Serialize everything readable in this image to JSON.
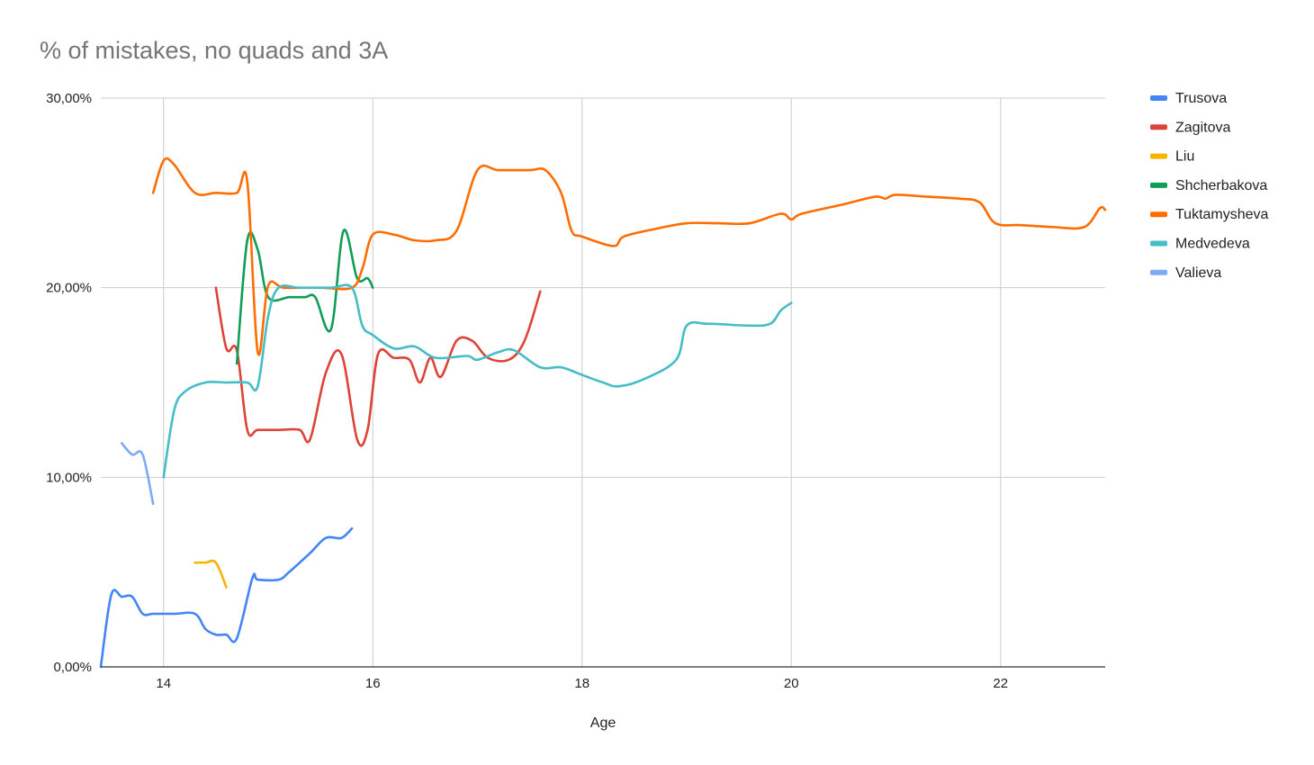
{
  "chart_data": {
    "type": "line",
    "title": "% of mistakes, no quads and 3A",
    "xlabel": "Age",
    "ylabel": "",
    "xlim": [
      13.4,
      23.0
    ],
    "ylim": [
      0,
      0.3
    ],
    "x_ticks": [
      14,
      16,
      18,
      20,
      22
    ],
    "x_tick_labels": [
      "14",
      "16",
      "18",
      "20",
      "22"
    ],
    "y_ticks": [
      0,
      0.1,
      0.2,
      0.3
    ],
    "y_tick_labels": [
      "0,00%",
      "10,00%",
      "20,00%",
      "30,00%"
    ],
    "grid": true,
    "legend_position": "right",
    "series": [
      {
        "name": "Trusova",
        "color": "#4285f4",
        "points": [
          [
            13.4,
            0.0
          ],
          [
            13.5,
            0.038
          ],
          [
            13.6,
            0.037
          ],
          [
            13.7,
            0.037
          ],
          [
            13.8,
            0.028
          ],
          [
            13.9,
            0.028
          ],
          [
            14.1,
            0.028
          ],
          [
            14.3,
            0.028
          ],
          [
            14.4,
            0.02
          ],
          [
            14.5,
            0.017
          ],
          [
            14.6,
            0.017
          ],
          [
            14.7,
            0.015
          ],
          [
            14.85,
            0.047
          ],
          [
            14.9,
            0.046
          ],
          [
            15.1,
            0.046
          ],
          [
            15.2,
            0.05
          ],
          [
            15.4,
            0.06
          ],
          [
            15.55,
            0.068
          ],
          [
            15.7,
            0.068
          ],
          [
            15.8,
            0.073
          ]
        ]
      },
      {
        "name": "Zagitova",
        "color": "#db4437",
        "points": [
          [
            14.5,
            0.2
          ],
          [
            14.6,
            0.168
          ],
          [
            14.7,
            0.167
          ],
          [
            14.8,
            0.125
          ],
          [
            14.9,
            0.125
          ],
          [
            15.1,
            0.125
          ],
          [
            15.3,
            0.125
          ],
          [
            15.4,
            0.12
          ],
          [
            15.55,
            0.155
          ],
          [
            15.7,
            0.165
          ],
          [
            15.85,
            0.12
          ],
          [
            15.95,
            0.125
          ],
          [
            16.05,
            0.165
          ],
          [
            16.2,
            0.163
          ],
          [
            16.35,
            0.162
          ],
          [
            16.45,
            0.15
          ],
          [
            16.55,
            0.163
          ],
          [
            16.65,
            0.153
          ],
          [
            16.8,
            0.172
          ],
          [
            16.95,
            0.172
          ],
          [
            17.1,
            0.163
          ],
          [
            17.3,
            0.162
          ],
          [
            17.45,
            0.172
          ],
          [
            17.6,
            0.198
          ]
        ]
      },
      {
        "name": "Liu",
        "color": "#f4b400",
        "points": [
          [
            14.3,
            0.055
          ],
          [
            14.4,
            0.055
          ],
          [
            14.5,
            0.055
          ],
          [
            14.6,
            0.042
          ]
        ]
      },
      {
        "name": "Shcherbakova",
        "color": "#0f9d58",
        "points": [
          [
            14.7,
            0.16
          ],
          [
            14.8,
            0.225
          ],
          [
            14.9,
            0.22
          ],
          [
            15.0,
            0.195
          ],
          [
            15.2,
            0.195
          ],
          [
            15.35,
            0.195
          ],
          [
            15.45,
            0.195
          ],
          [
            15.6,
            0.178
          ],
          [
            15.72,
            0.23
          ],
          [
            15.85,
            0.205
          ],
          [
            15.95,
            0.205
          ],
          [
            16.0,
            0.2
          ]
        ]
      },
      {
        "name": "Tuktamysheva",
        "color": "#ff6d00",
        "points": [
          [
            13.9,
            0.25
          ],
          [
            14.0,
            0.267
          ],
          [
            14.1,
            0.265
          ],
          [
            14.3,
            0.25
          ],
          [
            14.5,
            0.25
          ],
          [
            14.7,
            0.25
          ],
          [
            14.8,
            0.256
          ],
          [
            14.9,
            0.166
          ],
          [
            15.0,
            0.201
          ],
          [
            15.15,
            0.2
          ],
          [
            15.5,
            0.2
          ],
          [
            15.8,
            0.2
          ],
          [
            15.9,
            0.21
          ],
          [
            16.0,
            0.228
          ],
          [
            16.2,
            0.228
          ],
          [
            16.4,
            0.225
          ],
          [
            16.6,
            0.225
          ],
          [
            16.8,
            0.23
          ],
          [
            17.0,
            0.262
          ],
          [
            17.2,
            0.262
          ],
          [
            17.5,
            0.262
          ],
          [
            17.65,
            0.262
          ],
          [
            17.8,
            0.25
          ],
          [
            17.9,
            0.23
          ],
          [
            18.0,
            0.227
          ],
          [
            18.3,
            0.222
          ],
          [
            18.4,
            0.227
          ],
          [
            18.7,
            0.231
          ],
          [
            19.0,
            0.234
          ],
          [
            19.3,
            0.234
          ],
          [
            19.6,
            0.234
          ],
          [
            19.9,
            0.239
          ],
          [
            20.0,
            0.236
          ],
          [
            20.1,
            0.239
          ],
          [
            20.5,
            0.244
          ],
          [
            20.8,
            0.248
          ],
          [
            20.9,
            0.247
          ],
          [
            21.0,
            0.249
          ],
          [
            21.3,
            0.248
          ],
          [
            21.6,
            0.247
          ],
          [
            21.8,
            0.245
          ],
          [
            21.95,
            0.234
          ],
          [
            22.2,
            0.233
          ],
          [
            22.5,
            0.232
          ],
          [
            22.8,
            0.232
          ],
          [
            22.95,
            0.242
          ],
          [
            23.0,
            0.241
          ]
        ]
      },
      {
        "name": "Medvedeva",
        "color": "#46bdc6",
        "points": [
          [
            14.0,
            0.1
          ],
          [
            14.1,
            0.135
          ],
          [
            14.2,
            0.145
          ],
          [
            14.4,
            0.15
          ],
          [
            14.6,
            0.15
          ],
          [
            14.8,
            0.15
          ],
          [
            14.9,
            0.148
          ],
          [
            15.0,
            0.185
          ],
          [
            15.1,
            0.2
          ],
          [
            15.3,
            0.2
          ],
          [
            15.6,
            0.2
          ],
          [
            15.8,
            0.2
          ],
          [
            15.9,
            0.18
          ],
          [
            16.0,
            0.175
          ],
          [
            16.2,
            0.168
          ],
          [
            16.4,
            0.169
          ],
          [
            16.6,
            0.163
          ],
          [
            16.9,
            0.164
          ],
          [
            17.0,
            0.162
          ],
          [
            17.2,
            0.166
          ],
          [
            17.35,
            0.167
          ],
          [
            17.6,
            0.158
          ],
          [
            17.8,
            0.158
          ],
          [
            18.0,
            0.154
          ],
          [
            18.2,
            0.15
          ],
          [
            18.35,
            0.148
          ],
          [
            18.6,
            0.152
          ],
          [
            18.9,
            0.162
          ],
          [
            19.0,
            0.18
          ],
          [
            19.2,
            0.181
          ],
          [
            19.6,
            0.18
          ],
          [
            19.8,
            0.181
          ],
          [
            19.9,
            0.188
          ],
          [
            20.0,
            0.192
          ]
        ]
      },
      {
        "name": "Valieva",
        "color": "#7baaf7",
        "points": [
          [
            13.6,
            0.118
          ],
          [
            13.7,
            0.112
          ],
          [
            13.8,
            0.112
          ],
          [
            13.9,
            0.086
          ]
        ]
      }
    ]
  }
}
